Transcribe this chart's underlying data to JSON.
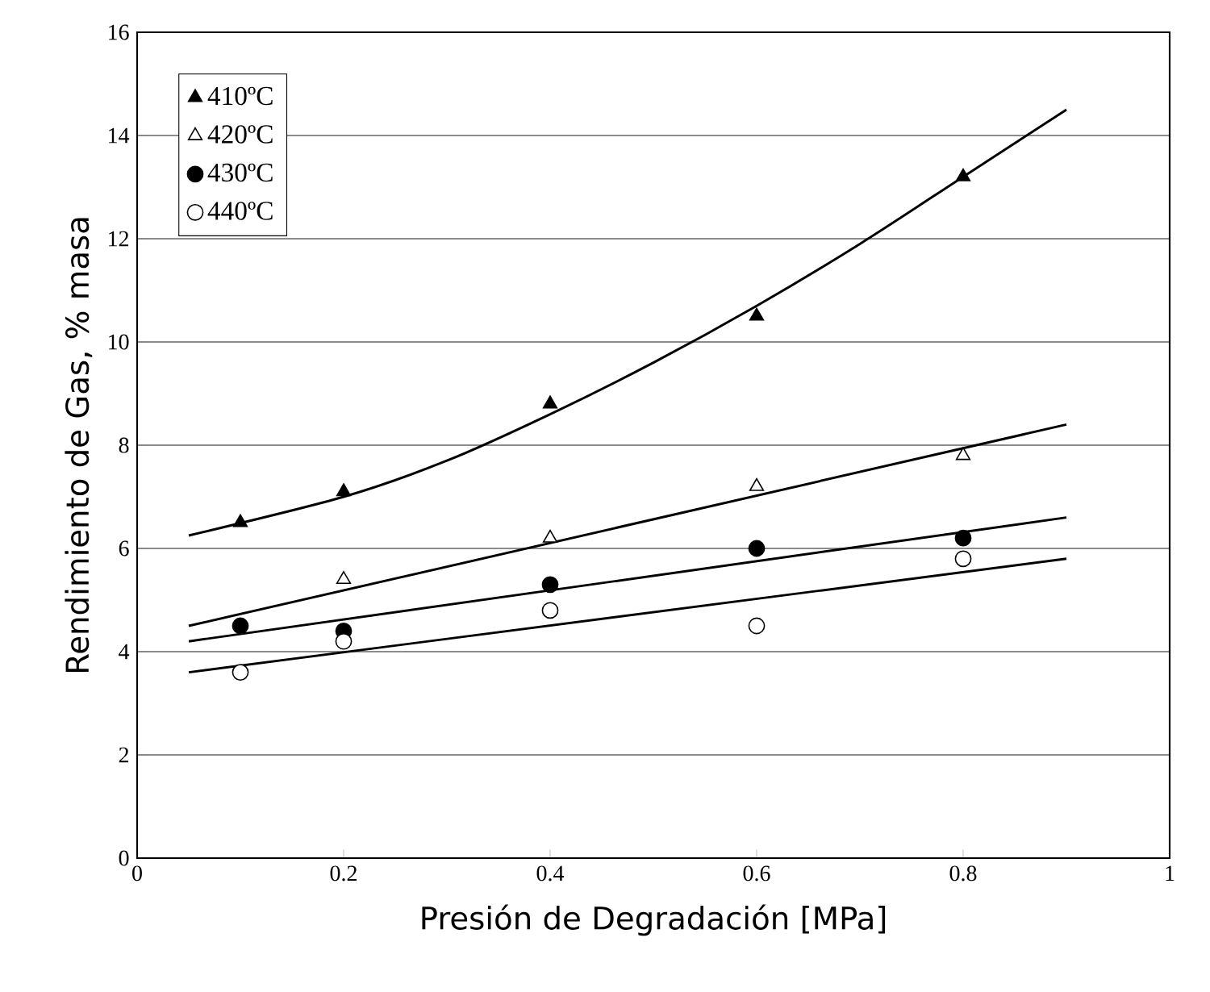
{
  "chart_data": {
    "type": "scatter",
    "xlabel": "Presión de Degradación [MPa]",
    "ylabel": "Rendimiento de Gas, % masa",
    "x": [
      0.1,
      0.2,
      0.4,
      0.6,
      0.8
    ],
    "series": [
      {
        "name": "410ºC",
        "marker": "triangle",
        "color": "#000000",
        "values": [
          6.5,
          7.1,
          8.8,
          10.5,
          13.2
        ]
      },
      {
        "name": "420ºC",
        "marker": "triangle",
        "color": "#ffffff",
        "values": [
          null,
          5.4,
          6.2,
          7.2,
          7.8
        ]
      },
      {
        "name": "430ºC",
        "marker": "circle",
        "color": "#000000",
        "values": [
          4.5,
          4.4,
          5.3,
          6.0,
          6.2
        ]
      },
      {
        "name": "440ºC",
        "marker": "circle",
        "color": "#ffffff",
        "values": [
          3.6,
          4.2,
          4.8,
          4.5,
          5.8
        ]
      },
      {
        "type": "line",
        "color": "#000000",
        "x": [
          0.05,
          0.2,
          0.3,
          0.4,
          0.5,
          0.6,
          0.7,
          0.8,
          0.9
        ],
        "values": [
          6.25,
          7.0,
          7.7,
          8.6,
          9.6,
          10.7,
          11.9,
          13.2,
          14.5
        ]
      },
      {
        "type": "line",
        "color": "#000000",
        "x": [
          0.05,
          0.9
        ],
        "values": [
          4.5,
          8.4
        ]
      },
      {
        "type": "line",
        "color": "#000000",
        "x": [
          0.05,
          0.9
        ],
        "values": [
          4.2,
          6.6
        ]
      },
      {
        "type": "line",
        "color": "#000000",
        "x": [
          0.05,
          0.9
        ],
        "values": [
          3.6,
          5.8
        ]
      }
    ],
    "xlim": [
      0,
      1
    ],
    "xticks": [
      0,
      0.2,
      0.4,
      0.6,
      0.8,
      1
    ],
    "ylim": [
      0,
      16
    ],
    "yticks": [
      0,
      2,
      4,
      6,
      8,
      10,
      12,
      14,
      16
    ],
    "grid": "y",
    "legend": "top left",
    "line_style": "solid"
  }
}
